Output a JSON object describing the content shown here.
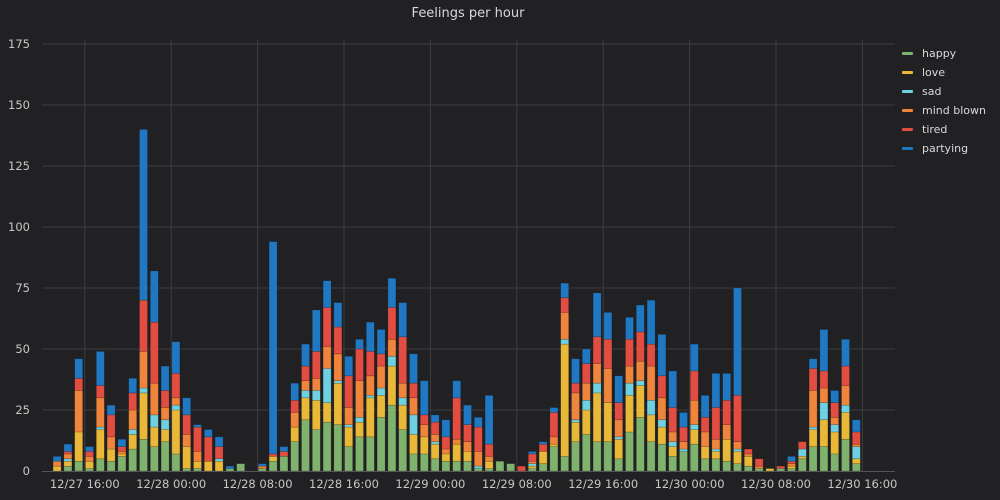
{
  "chart_data": {
    "type": "bar",
    "stacked": true,
    "title": "Feelings per hour",
    "xlabel": "",
    "ylabel": "",
    "ylim": [
      0,
      175
    ],
    "yticks": [
      0,
      25,
      50,
      75,
      100,
      125,
      150,
      175
    ],
    "grid": true,
    "legend_position": "right",
    "xtick_labels": [
      "12/27 16:00",
      "12/28 00:00",
      "12/28 08:00",
      "12/28 16:00",
      "12/29 00:00",
      "12/29 08:00",
      "12/29 16:00",
      "12/30 00:00",
      "12/30 08:00",
      "12/30 16:00"
    ],
    "categories": [
      "12/27 13:00",
      "12/27 14:00",
      "12/27 15:00",
      "12/27 16:00",
      "12/27 17:00",
      "12/27 18:00",
      "12/27 19:00",
      "12/27 20:00",
      "12/27 21:00",
      "12/27 22:00",
      "12/27 23:00",
      "12/28 00:00",
      "12/28 01:00",
      "12/28 02:00",
      "12/28 03:00",
      "12/28 04:00",
      "12/28 05:00",
      "12/28 06:00",
      "12/28 07:00",
      "12/28 08:00",
      "12/28 09:00",
      "12/28 10:00",
      "12/28 11:00",
      "12/28 12:00",
      "12/28 13:00",
      "12/28 14:00",
      "12/28 15:00",
      "12/28 16:00",
      "12/28 17:00",
      "12/28 18:00",
      "12/28 19:00",
      "12/28 20:00",
      "12/28 21:00",
      "12/28 22:00",
      "12/28 23:00",
      "12/29 00:00",
      "12/29 01:00",
      "12/29 02:00",
      "12/29 03:00",
      "12/29 04:00",
      "12/29 05:00",
      "12/29 06:00",
      "12/29 07:00",
      "12/29 08:00",
      "12/29 09:00",
      "12/29 10:00",
      "12/29 11:00",
      "12/29 12:00",
      "12/29 13:00",
      "12/29 14:00",
      "12/29 15:00",
      "12/29 16:00",
      "12/29 17:00",
      "12/29 18:00",
      "12/29 19:00",
      "12/29 20:00",
      "12/29 21:00",
      "12/29 22:00",
      "12/29 23:00",
      "12/30 00:00",
      "12/30 01:00",
      "12/30 02:00",
      "12/30 03:00",
      "12/30 04:00",
      "12/30 05:00",
      "12/30 06:00",
      "12/30 07:00",
      "12/30 08:00",
      "12/30 09:00",
      "12/30 10:00",
      "12/30 11:00",
      "12/30 12:00",
      "12/30 13:00",
      "12/30 14:00",
      "12/30 15:00"
    ],
    "series": [
      {
        "name": "happy",
        "color": "#7eb26d",
        "values": [
          0,
          2,
          4,
          1,
          5,
          4,
          6,
          9,
          13,
          10,
          12,
          7,
          1,
          1,
          0,
          0,
          1,
          3,
          0,
          1,
          4,
          6,
          12,
          21,
          17,
          20,
          19,
          10,
          14,
          14,
          22,
          27,
          17,
          7,
          7,
          5,
          4,
          4,
          4,
          1,
          1,
          4,
          3,
          0,
          1,
          3,
          10,
          6,
          12,
          15,
          12,
          12,
          5,
          16,
          22,
          12,
          11,
          6,
          8,
          11,
          5,
          5,
          4,
          3,
          2,
          1,
          0,
          1,
          1,
          5,
          10,
          10,
          7,
          13,
          3
        ]
      },
      {
        "name": "love",
        "color": "#eab839",
        "values": [
          2,
          2,
          12,
          3,
          12,
          5,
          1,
          6,
          19,
          8,
          5,
          18,
          9,
          3,
          4,
          4,
          0,
          0,
          0,
          0,
          2,
          0,
          6,
          9,
          12,
          8,
          17,
          8,
          6,
          16,
          9,
          16,
          10,
          8,
          7,
          6,
          3,
          7,
          4,
          0,
          3,
          0,
          0,
          0,
          1,
          5,
          1,
          46,
          8,
          10,
          20,
          16,
          8,
          15,
          13,
          11,
          7,
          4,
          0,
          6,
          5,
          3,
          9,
          5,
          4,
          0,
          1,
          0,
          1,
          1,
          7,
          11,
          9,
          11,
          2
        ]
      },
      {
        "name": "sad",
        "color": "#6ed0e0",
        "values": [
          0,
          1,
          0,
          0,
          1,
          0,
          0,
          2,
          2,
          5,
          4,
          2,
          0,
          0,
          0,
          1,
          0,
          0,
          0,
          0,
          0,
          0,
          0,
          3,
          4,
          14,
          1,
          1,
          2,
          1,
          3,
          4,
          3,
          8,
          0,
          1,
          0,
          0,
          0,
          1,
          0,
          0,
          0,
          0,
          1,
          0,
          0,
          2,
          1,
          4,
          4,
          0,
          1,
          5,
          2,
          6,
          3,
          2,
          1,
          2,
          0,
          1,
          0,
          1,
          0,
          0,
          0,
          0,
          0,
          3,
          1,
          7,
          3,
          3,
          5
        ]
      },
      {
        "name": "mind blown",
        "color": "#ef843c",
        "values": [
          2,
          2,
          17,
          2,
          12,
          5,
          1,
          8,
          15,
          13,
          5,
          3,
          5,
          4,
          0,
          0,
          0,
          0,
          0,
          1,
          0,
          0,
          6,
          4,
          5,
          9,
          11,
          7,
          15,
          8,
          9,
          7,
          6,
          7,
          5,
          3,
          2,
          2,
          4,
          6,
          2,
          0,
          0,
          0,
          1,
          0,
          3,
          11,
          11,
          7,
          8,
          14,
          7,
          7,
          8,
          14,
          9,
          4,
          3,
          10,
          6,
          4,
          6,
          3,
          1,
          1,
          0,
          0,
          1,
          0,
          15,
          6,
          3,
          8,
          1
        ]
      },
      {
        "name": "tired",
        "color": "#e24d42",
        "values": [
          0,
          1,
          5,
          2,
          5,
          9,
          2,
          7,
          21,
          25,
          7,
          10,
          8,
          10,
          10,
          5,
          0,
          0,
          0,
          0,
          1,
          2,
          5,
          6,
          11,
          16,
          11,
          13,
          13,
          10,
          5,
          13,
          19,
          6,
          4,
          5,
          5,
          17,
          7,
          10,
          5,
          0,
          0,
          2,
          3,
          3,
          10,
          6,
          4,
          8,
          11,
          12,
          7,
          11,
          12,
          9,
          9,
          10,
          6,
          12,
          6,
          13,
          10,
          19,
          2,
          3,
          0,
          1,
          1,
          3,
          9,
          7,
          6,
          8,
          5
        ]
      },
      {
        "name": "partying",
        "color": "#1f78c1",
        "values": [
          2,
          3,
          8,
          2,
          14,
          4,
          3,
          6,
          70,
          21,
          10,
          13,
          7,
          1,
          3,
          4,
          1,
          0,
          0,
          1,
          87,
          2,
          7,
          9,
          17,
          11,
          10,
          8,
          4,
          12,
          10,
          12,
          14,
          12,
          14,
          3,
          7,
          7,
          8,
          4,
          20,
          0,
          0,
          0,
          1,
          1,
          2,
          6,
          10,
          6,
          18,
          11,
          11,
          9,
          11,
          18,
          17,
          15,
          6,
          11,
          9,
          14,
          11,
          44,
          0,
          0,
          0,
          0,
          2,
          0,
          4,
          17,
          5,
          11,
          5
        ]
      }
    ]
  }
}
